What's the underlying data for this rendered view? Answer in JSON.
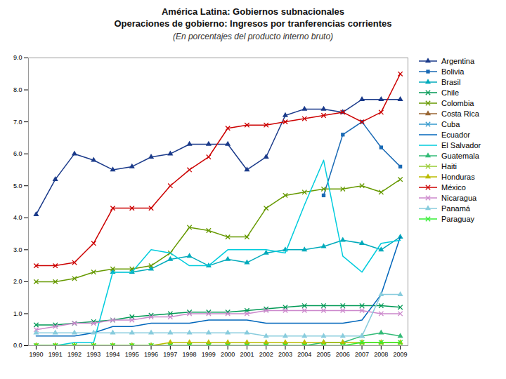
{
  "chart_data": {
    "type": "line",
    "title": [
      "América Latina: Gobiernos subnacionales",
      "Operaciones de gobierno: Ingresos por tranferencias corrientes"
    ],
    "subtitle": "(En porcentajes del producto interno bruto)",
    "x": [
      1990,
      1991,
      1992,
      1993,
      1994,
      1995,
      1996,
      1997,
      1998,
      1999,
      2000,
      2001,
      2002,
      2003,
      2004,
      2005,
      2006,
      2007,
      2008,
      2009
    ],
    "xlim": [
      1989.6,
      2009.4
    ],
    "xticks": [
      1990,
      1991,
      1992,
      1993,
      1994,
      1995,
      1996,
      1997,
      1998,
      1999,
      2000,
      2001,
      2002,
      2003,
      2004,
      2005,
      2006,
      2007,
      2008,
      2009
    ],
    "ylim": [
      0.0,
      9.0
    ],
    "yticks": [
      {
        "value": 0,
        "label": "0.0"
      },
      {
        "value": 1,
        "label": "1.0"
      },
      {
        "value": 2,
        "label": "2.0"
      },
      {
        "value": 3,
        "label": "3.0"
      },
      {
        "value": 4,
        "label": "4.0"
      },
      {
        "value": 5,
        "label": "5.0"
      },
      {
        "value": 6,
        "label": "6.0"
      },
      {
        "value": 7,
        "label": "7.0"
      },
      {
        "value": 8,
        "label": "8.0"
      },
      {
        "value": 9,
        "label": "9.0"
      }
    ],
    "grid": false,
    "legend": "right",
    "series": [
      {
        "name": "Argentina",
        "color": "#1a3a8a",
        "marker": "triangle",
        "values": [
          4.1,
          5.2,
          6.0,
          5.8,
          5.5,
          5.6,
          5.9,
          6.0,
          6.3,
          6.3,
          6.3,
          5.5,
          5.9,
          7.2,
          7.4,
          7.4,
          7.3,
          7.7,
          7.7,
          7.7
        ]
      },
      {
        "name": "Bolivia",
        "color": "#1a6ab5",
        "marker": "square",
        "values": [
          null,
          null,
          null,
          null,
          null,
          null,
          null,
          null,
          null,
          null,
          null,
          null,
          null,
          null,
          null,
          4.7,
          6.6,
          7.0,
          6.2,
          5.6
        ]
      },
      {
        "name": "Brasil",
        "color": "#00aabb",
        "marker": "triangle",
        "values": [
          null,
          null,
          null,
          null,
          2.3,
          2.3,
          2.4,
          2.7,
          2.8,
          2.5,
          2.7,
          2.6,
          2.9,
          3.0,
          3.0,
          3.1,
          3.3,
          3.2,
          3.0,
          3.4
        ]
      },
      {
        "name": "Chile",
        "color": "#009955",
        "marker": "x",
        "values": [
          0.65,
          0.65,
          0.7,
          0.75,
          0.8,
          0.9,
          0.95,
          1.0,
          1.05,
          1.05,
          1.05,
          1.1,
          1.15,
          1.2,
          1.25,
          1.25,
          1.25,
          1.25,
          1.25,
          1.2
        ]
      },
      {
        "name": "Colombia",
        "color": "#669900",
        "marker": "x",
        "values": [
          2.0,
          2.0,
          2.1,
          2.3,
          2.4,
          2.4,
          2.5,
          2.9,
          3.7,
          3.6,
          3.4,
          3.4,
          4.3,
          4.7,
          4.8,
          4.9,
          4.9,
          5.0,
          4.8,
          5.2
        ]
      },
      {
        "name": "Costa Rica",
        "color": "#996633",
        "marker": "triangle",
        "values": [
          null,
          null,
          null,
          null,
          null,
          null,
          null,
          null,
          null,
          null,
          null,
          null,
          null,
          null,
          null,
          null,
          null,
          null,
          null,
          null
        ]
      },
      {
        "name": "Cuba",
        "color": "#3399cc",
        "marker": "x",
        "values": [
          null,
          null,
          null,
          null,
          null,
          null,
          null,
          null,
          null,
          null,
          null,
          null,
          null,
          null,
          null,
          null,
          null,
          null,
          null,
          null
        ]
      },
      {
        "name": "Ecuador",
        "color": "#0066bb",
        "marker": "none",
        "values": [
          0.3,
          0.3,
          0.3,
          0.4,
          0.6,
          0.6,
          0.7,
          0.7,
          0.7,
          0.8,
          0.8,
          0.8,
          0.7,
          0.7,
          0.7,
          0.7,
          0.7,
          0.8,
          1.6,
          3.4
        ]
      },
      {
        "name": "El Salvador",
        "color": "#00ccdd",
        "marker": "none",
        "values": [
          0.0,
          0.0,
          0.1,
          0.1,
          2.3,
          2.3,
          3.0,
          2.9,
          2.5,
          2.5,
          3.0,
          3.0,
          3.0,
          2.9,
          4.4,
          5.8,
          2.8,
          2.3,
          3.2,
          3.3
        ]
      },
      {
        "name": "Guatemala",
        "color": "#33bb77",
        "marker": "triangle",
        "values": [
          0.0,
          0.0,
          0.0,
          0.0,
          0.0,
          0.0,
          0.0,
          0.0,
          0.0,
          0.0,
          0.0,
          0.0,
          0.0,
          0.0,
          0.0,
          0.1,
          0.1,
          0.3,
          0.4,
          0.3
        ]
      },
      {
        "name": "Haiti",
        "color": "#99cc33",
        "marker": "x",
        "values": [
          0.0,
          0.0,
          0.0,
          0.0,
          0.0,
          0.0,
          0.0,
          0.0,
          0.0,
          0.0,
          0.0,
          0.0,
          0.0,
          0.0,
          0.0,
          0.0,
          0.0,
          0.0,
          0.0,
          0.0
        ]
      },
      {
        "name": "Honduras",
        "color": "#bbbb00",
        "marker": "triangle",
        "values": [
          0.0,
          0.0,
          0.0,
          0.0,
          0.0,
          0.0,
          0.0,
          0.1,
          0.1,
          0.1,
          0.1,
          0.1,
          0.1,
          0.1,
          0.1,
          0.1,
          0.1,
          0.1,
          0.1,
          0.1
        ]
      },
      {
        "name": "México",
        "color": "#cc0000",
        "marker": "x",
        "values": [
          2.5,
          2.5,
          2.6,
          3.2,
          4.3,
          4.3,
          4.3,
          5.0,
          5.5,
          5.9,
          6.8,
          6.9,
          6.9,
          7.0,
          7.1,
          7.2,
          7.3,
          7.0,
          7.3,
          8.5
        ]
      },
      {
        "name": "Nicaragua",
        "color": "#cc88cc",
        "marker": "x",
        "values": [
          0.5,
          0.6,
          0.7,
          0.7,
          0.8,
          0.8,
          0.9,
          0.9,
          1.0,
          1.0,
          1.0,
          1.0,
          1.1,
          1.1,
          1.1,
          1.1,
          1.1,
          1.1,
          1.0,
          1.0
        ]
      },
      {
        "name": "Panamá",
        "color": "#88ccdd",
        "marker": "triangle",
        "values": [
          0.4,
          0.4,
          0.4,
          0.4,
          0.4,
          0.4,
          0.4,
          0.4,
          0.4,
          0.4,
          0.4,
          0.4,
          0.3,
          0.3,
          0.3,
          0.3,
          0.3,
          0.3,
          1.6,
          1.6
        ]
      },
      {
        "name": "Paraguay",
        "color": "#33ee33",
        "marker": "x",
        "values": [
          0.0,
          0.0,
          0.0,
          0.0,
          0.0,
          0.0,
          0.0,
          0.0,
          0.0,
          0.0,
          0.0,
          0.0,
          0.0,
          0.0,
          0.0,
          0.0,
          0.0,
          0.1,
          0.1,
          0.1
        ]
      }
    ]
  }
}
